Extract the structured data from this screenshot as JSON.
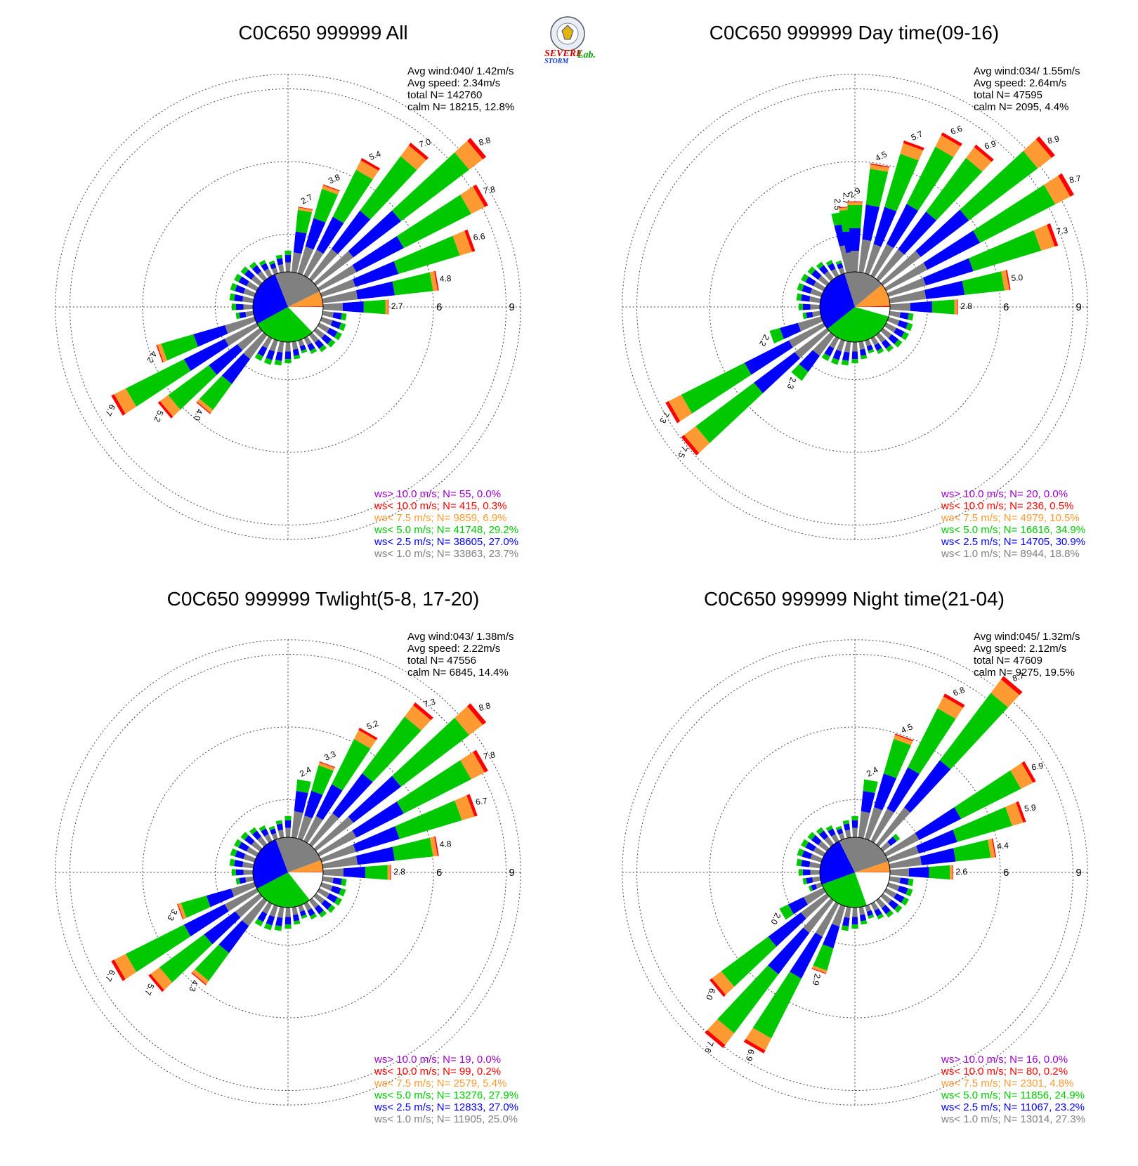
{
  "logo": {
    "word1": "SEVERE",
    "word2": "STORM",
    "word3": "Lab."
  },
  "colors": {
    "gt10": "#9a00c8",
    "lt10": "#ff0000",
    "lt75": "#ff9a33",
    "lt5": "#00c800",
    "lt25": "#0000ff",
    "lt1": "#808080",
    "calm": "#ffffff"
  },
  "chart_data": [
    {
      "type": "wind-rose",
      "title": "C0C650 999999 All",
      "stats": {
        "avg_wind": "Avg wind:040/ 1.42m/s",
        "avg_speed": "Avg speed: 2.34m/s",
        "total": "total N=     142760",
        "calm": "calm N= 18215,  12.8%"
      },
      "rings": [
        3,
        6,
        9
      ],
      "ring_labels": [
        "3",
        "6",
        "9"
      ],
      "direction_bins_deg": 10,
      "petals": [
        {
          "dir": 10,
          "pct": 2.7,
          "label": "2.7"
        },
        {
          "dir": 20,
          "pct": 3.8,
          "label": "3.8"
        },
        {
          "dir": 30,
          "pct": 5.4,
          "label": "5.4"
        },
        {
          "dir": 40,
          "pct": 7.0,
          "label": "7.0"
        },
        {
          "dir": 50,
          "pct": 8.8,
          "label": "8.8"
        },
        {
          "dir": 60,
          "pct": 7.8,
          "label": "7.8"
        },
        {
          "dir": 70,
          "pct": 6.6,
          "label": "6.6"
        },
        {
          "dir": 80,
          "pct": 4.8,
          "label": "4.8"
        },
        {
          "dir": 90,
          "pct": 2.7,
          "label": "2.7"
        },
        {
          "dir": 220,
          "pct": 4.0,
          "label": "4.0"
        },
        {
          "dir": 230,
          "pct": 5.2,
          "label": "5.2"
        },
        {
          "dir": 240,
          "pct": 6.7,
          "label": "6.7"
        },
        {
          "dir": 250,
          "pct": 4.2,
          "label": "4.2"
        }
      ],
      "legend": [
        {
          "text": "ws> 10.0 m/s; N=   55,  0.0%",
          "color": "#9a00c8"
        },
        {
          "text": "ws< 10.0 m/s; N=  415,  0.3%",
          "color": "#ff0000"
        },
        {
          "text": "ws<  7.5 m/s; N=  9859,  6.9%",
          "color": "#ff9a33"
        },
        {
          "text": "ws<  5.0 m/s; N= 41748, 29.2%",
          "color": "#00c800"
        },
        {
          "text": "ws<  2.5 m/s; N= 38605, 27.0%",
          "color": "#0000ff"
        },
        {
          "text": "ws<  1.0 m/s; N= 33863, 23.7%",
          "color": "#808080"
        }
      ],
      "pie": [
        {
          "class": "calm",
          "pct": 12.8
        },
        {
          "class": "lt5",
          "pct": 29.2
        },
        {
          "class": "lt25",
          "pct": 27.0
        },
        {
          "class": "lt1",
          "pct": 23.7
        },
        {
          "class": "lt75",
          "pct": 6.9
        },
        {
          "class": "lt10",
          "pct": 0.3
        }
      ]
    },
    {
      "type": "wind-rose",
      "title": "C0C650 999999 Day time(09-16)",
      "stats": {
        "avg_wind": "Avg wind:034/ 1.55m/s",
        "avg_speed": "Avg speed: 2.64m/s",
        "total": "total N=      47595",
        "calm": "calm N=  2095,   4.4%"
      },
      "rings": [
        3,
        6,
        9
      ],
      "ring_labels": [
        "3",
        "6",
        "9"
      ],
      "direction_bins_deg": 10,
      "petals": [
        {
          "dir": 350,
          "pct": 2.5,
          "label": "2.5"
        },
        {
          "dir": 355,
          "pct": 2.7,
          "label": "2.7"
        },
        {
          "dir": 0,
          "pct": 2.9,
          "label": "2.9"
        },
        {
          "dir": 10,
          "pct": 4.5,
          "label": "4.5"
        },
        {
          "dir": 20,
          "pct": 5.7,
          "label": "5.7"
        },
        {
          "dir": 30,
          "pct": 6.6,
          "label": "6.6"
        },
        {
          "dir": 40,
          "pct": 6.9,
          "label": "6.9"
        },
        {
          "dir": 50,
          "pct": 8.9,
          "label": "8.9"
        },
        {
          "dir": 60,
          "pct": 8.7,
          "label": "8.7"
        },
        {
          "dir": 70,
          "pct": 7.3,
          "label": "7.3"
        },
        {
          "dir": 80,
          "pct": 5.0,
          "label": "5.0"
        },
        {
          "dir": 90,
          "pct": 2.8,
          "label": "2.8"
        },
        {
          "dir": 220,
          "pct": 2.3,
          "label": "2.3"
        },
        {
          "dir": 230,
          "pct": 7.5,
          "label": "7.5"
        },
        {
          "dir": 240,
          "pct": 7.3,
          "label": "7.3"
        },
        {
          "dir": 250,
          "pct": 2.2,
          "label": "2.2"
        }
      ],
      "legend": [
        {
          "text": "ws> 10.0 m/s; N=   20,  0.0%",
          "color": "#9a00c8"
        },
        {
          "text": "ws< 10.0 m/s; N=  236,  0.5%",
          "color": "#ff0000"
        },
        {
          "text": "ws<  7.5 m/s; N=  4979, 10.5%",
          "color": "#ff9a33"
        },
        {
          "text": "ws<  5.0 m/s; N= 16616, 34.9%",
          "color": "#00c800"
        },
        {
          "text": "ws<  2.5 m/s; N= 14705, 30.9%",
          "color": "#0000ff"
        },
        {
          "text": "ws<  1.0 m/s; N=  8944, 18.8%",
          "color": "#808080"
        }
      ],
      "pie": [
        {
          "class": "calm",
          "pct": 4.4
        },
        {
          "class": "lt5",
          "pct": 34.9
        },
        {
          "class": "lt25",
          "pct": 30.9
        },
        {
          "class": "lt1",
          "pct": 18.8
        },
        {
          "class": "lt75",
          "pct": 10.5
        },
        {
          "class": "lt10",
          "pct": 0.5
        }
      ]
    },
    {
      "type": "wind-rose",
      "title": "C0C650 999999 Twlight(5-8, 17-20)",
      "stats": {
        "avg_wind": "Avg wind:043/ 1.38m/s",
        "avg_speed": "Avg speed: 2.22m/s",
        "total": "total N=      47556",
        "calm": "calm N=  6845,  14.4%"
      },
      "rings": [
        3,
        6,
        9
      ],
      "ring_labels": [
        "3",
        "6",
        "9"
      ],
      "direction_bins_deg": 10,
      "petals": [
        {
          "dir": 10,
          "pct": 2.4,
          "label": "2.4"
        },
        {
          "dir": 20,
          "pct": 3.3,
          "label": "3.3"
        },
        {
          "dir": 30,
          "pct": 5.2,
          "label": "5.2"
        },
        {
          "dir": 40,
          "pct": 7.3,
          "label": "7.3"
        },
        {
          "dir": 50,
          "pct": 8.8,
          "label": "8.8"
        },
        {
          "dir": 60,
          "pct": 7.8,
          "label": "7.8"
        },
        {
          "dir": 70,
          "pct": 6.7,
          "label": "6.7"
        },
        {
          "dir": 80,
          "pct": 4.8,
          "label": "4.8"
        },
        {
          "dir": 90,
          "pct": 2.8,
          "label": "2.8"
        },
        {
          "dir": 220,
          "pct": 4.3,
          "label": "4.3"
        },
        {
          "dir": 230,
          "pct": 5.7,
          "label": "5.7"
        },
        {
          "dir": 240,
          "pct": 6.7,
          "label": "6.7"
        },
        {
          "dir": 250,
          "pct": 3.3,
          "label": "3.3"
        }
      ],
      "legend": [
        {
          "text": "ws> 10.0 m/s; N=   19,  0.0%",
          "color": "#9a00c8"
        },
        {
          "text": "ws< 10.0 m/s; N=   99,  0.2%",
          "color": "#ff0000"
        },
        {
          "text": "ws<  7.5 m/s; N=  2579,  5.4%",
          "color": "#ff9a33"
        },
        {
          "text": "ws<  5.0 m/s; N= 13276, 27.9%",
          "color": "#00c800"
        },
        {
          "text": "ws<  2.5 m/s; N= 12833, 27.0%",
          "color": "#0000ff"
        },
        {
          "text": "ws<  1.0 m/s; N= 11905, 25.0%",
          "color": "#808080"
        }
      ],
      "pie": [
        {
          "class": "calm",
          "pct": 14.4
        },
        {
          "class": "lt5",
          "pct": 27.9
        },
        {
          "class": "lt25",
          "pct": 27.0
        },
        {
          "class": "lt1",
          "pct": 25.0
        },
        {
          "class": "lt75",
          "pct": 5.4
        },
        {
          "class": "lt10",
          "pct": 0.2
        }
      ]
    },
    {
      "type": "wind-rose",
      "title": "C0C650 999999 Night time(21-04)",
      "stats": {
        "avg_wind": "Avg wind:045/ 1.32m/s",
        "avg_speed": "Avg speed: 2.12m/s",
        "total": "total N=      47609",
        "calm": "calm N=  9275,  19.5%"
      },
      "rings": [
        3,
        6,
        9
      ],
      "ring_labels": [
        "3",
        "6",
        "9"
      ],
      "direction_bins_deg": 10,
      "petals": [
        {
          "dir": 10,
          "pct": 2.4,
          "label": "2.4"
        },
        {
          "dir": 20,
          "pct": 4.5,
          "label": "4.5"
        },
        {
          "dir": 30,
          "pct": 6.8,
          "label": "6.8"
        },
        {
          "dir": 40,
          "pct": 8.7,
          "label": "8.7"
        },
        {
          "dir": 60,
          "pct": 6.9,
          "label": "6.9"
        },
        {
          "dir": 70,
          "pct": 5.9,
          "label": "5.9"
        },
        {
          "dir": 80,
          "pct": 4.4,
          "label": "4.4"
        },
        {
          "dir": 90,
          "pct": 2.6,
          "label": "2.6"
        },
        {
          "dir": 200,
          "pct": 2.9,
          "label": "2.9"
        },
        {
          "dir": 210,
          "pct": 6.9,
          "label": "6.9"
        },
        {
          "dir": 220,
          "pct": 7.6,
          "label": "7.6"
        },
        {
          "dir": 230,
          "pct": 6.0,
          "label": "6.0"
        },
        {
          "dir": 240,
          "pct": 2.0,
          "label": "2.0"
        }
      ],
      "legend": [
        {
          "text": "ws> 10.0 m/s; N=   16,  0.0%",
          "color": "#9a00c8"
        },
        {
          "text": "ws< 10.0 m/s; N=   80,  0.2%",
          "color": "#ff0000"
        },
        {
          "text": "ws<  7.5 m/s; N=  2301,  4.8%",
          "color": "#ff9a33"
        },
        {
          "text": "ws<  5.0 m/s; N= 11856, 24.9%",
          "color": "#00c800"
        },
        {
          "text": "ws<  2.5 m/s; N= 11067, 23.2%",
          "color": "#0000ff"
        },
        {
          "text": "ws<  1.0 m/s; N= 13014, 27.3%",
          "color": "#808080"
        }
      ],
      "pie": [
        {
          "class": "calm",
          "pct": 19.5
        },
        {
          "class": "lt5",
          "pct": 24.9
        },
        {
          "class": "lt25",
          "pct": 23.2
        },
        {
          "class": "lt1",
          "pct": 27.3
        },
        {
          "class": "lt75",
          "pct": 4.8
        },
        {
          "class": "lt10",
          "pct": 0.2
        }
      ]
    }
  ]
}
